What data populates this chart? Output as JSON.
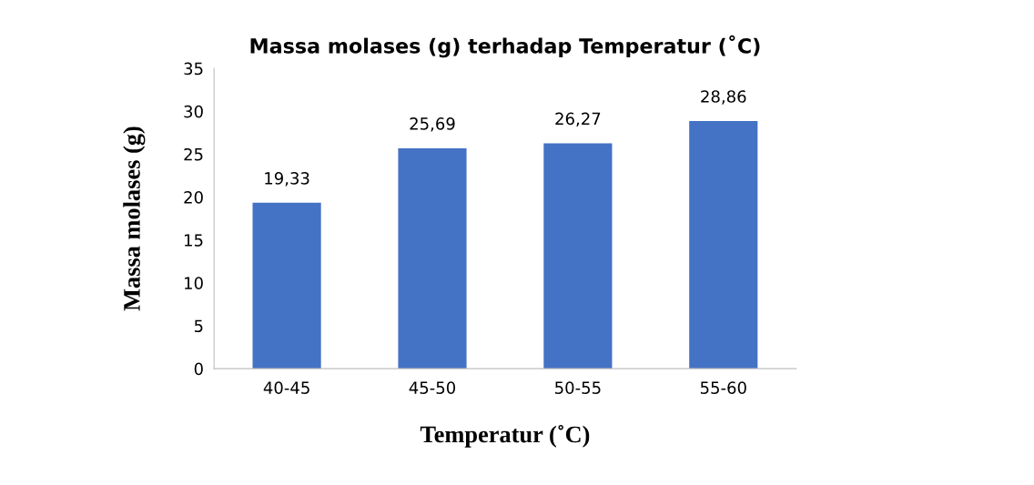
{
  "chart_data": {
    "type": "bar",
    "title": "Massa molases (g) terhadap Temperatur (˚C)",
    "xlabel": "Temperatur (˚C)",
    "ylabel": "Massa molases (g)",
    "categories": [
      "40-45",
      "45-50",
      "50-55",
      "55-60"
    ],
    "values": [
      19.33,
      25.69,
      26.27,
      28.86
    ],
    "value_labels": [
      "19,33",
      "25,69",
      "26,27",
      "28,86"
    ],
    "color": "#4472c4",
    "ylim": [
      0,
      35
    ],
    "yticks": [
      0,
      5,
      10,
      15,
      20,
      25,
      30,
      35
    ],
    "grid": false
  }
}
